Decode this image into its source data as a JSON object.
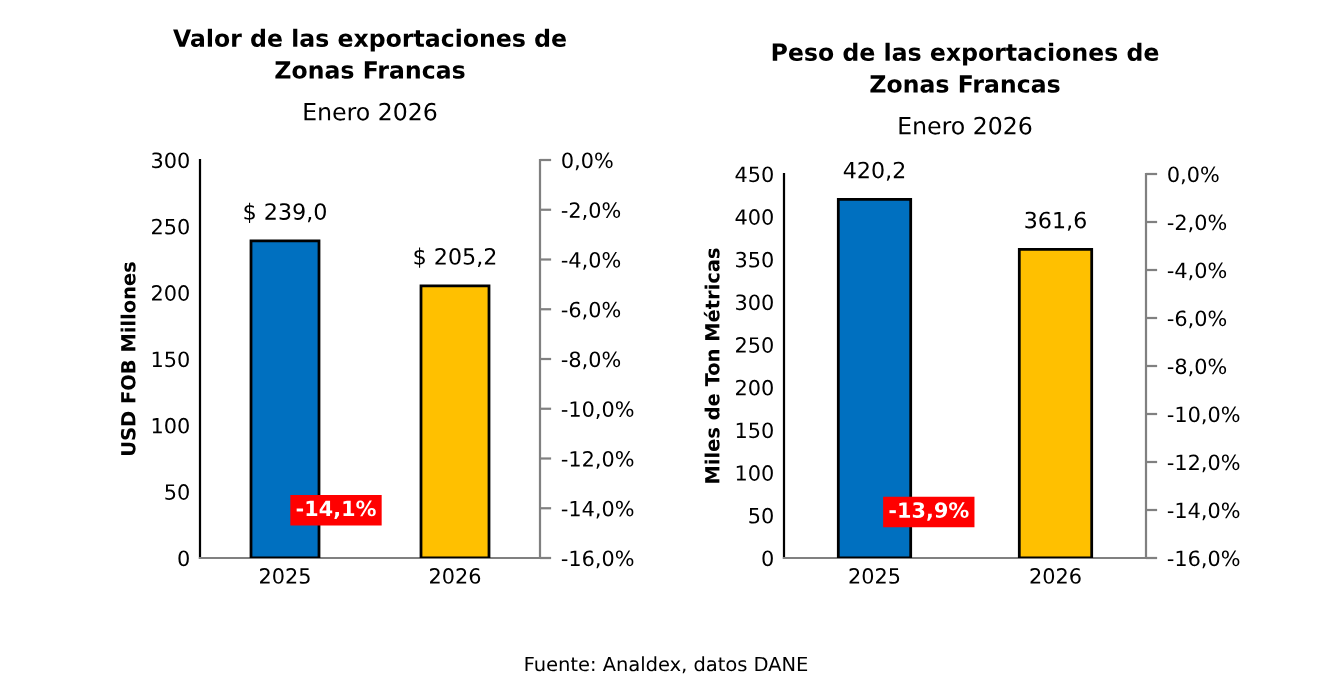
{
  "chart_data": [
    {
      "type": "bar",
      "title": "Valor de las exportaciones de\nZonas Francas",
      "subtitle": "Enero 2026",
      "ylabel": "USD FOB Millones",
      "categories": [
        "2025",
        "2026"
      ],
      "values": [
        239.0,
        205.2
      ],
      "colors": [
        "#0070c0",
        "#ffc000"
      ],
      "value_labels": [
        "$ 239,0",
        "$ 205,2"
      ],
      "ylim": [
        0,
        300
      ],
      "yticks": [
        0,
        50,
        100,
        150,
        200,
        250,
        300
      ],
      "y2lim": [
        -16,
        0
      ],
      "y2ticks": [
        {
          "value": 0,
          "label": "0,0%"
        },
        {
          "value": -2,
          "label": "-2,0%"
        },
        {
          "value": -4,
          "label": "-4,0%"
        },
        {
          "value": -6,
          "label": "-6,0%"
        },
        {
          "value": -8,
          "label": "-8,0%"
        },
        {
          "value": -10,
          "label": "-10,0%"
        },
        {
          "value": -12,
          "label": "-12,0%"
        },
        {
          "value": -14,
          "label": "-14,0%"
        },
        {
          "value": -16,
          "label": "-16,0%"
        }
      ],
      "annotations": [
        "-14,1%",
        "Fuente: Analdex, datos DANE"
      ],
      "grid": false,
      "legend": false
    },
    {
      "type": "bar",
      "title": "Peso de las exportaciones de\nZonas Francas",
      "subtitle": "Enero 2026",
      "ylabel": "Miles de Ton Métricas",
      "categories": [
        "2025",
        "2026"
      ],
      "values": [
        420.2,
        361.6
      ],
      "colors": [
        "#0070c0",
        "#ffc000"
      ],
      "value_labels": [
        "420,2",
        "361,6"
      ],
      "ylim": [
        0,
        450
      ],
      "yticks": [
        0,
        50,
        100,
        150,
        200,
        250,
        300,
        350,
        400,
        450
      ],
      "y2lim": [
        -16,
        0
      ],
      "y2ticks": [
        {
          "value": 0,
          "label": "0,0%"
        },
        {
          "value": -2,
          "label": "-2,0%"
        },
        {
          "value": -4,
          "label": "-4,0%"
        },
        {
          "value": -6,
          "label": "-6,0%"
        },
        {
          "value": -8,
          "label": "-8,0%"
        },
        {
          "value": -10,
          "label": "-10,0%"
        },
        {
          "value": -12,
          "label": "-12,0%"
        },
        {
          "value": -14,
          "label": "-14,0%"
        },
        {
          "value": -16,
          "label": "-16,0%"
        }
      ],
      "annotations": [
        "-13,9%"
      ],
      "grid": false,
      "legend": false
    }
  ]
}
